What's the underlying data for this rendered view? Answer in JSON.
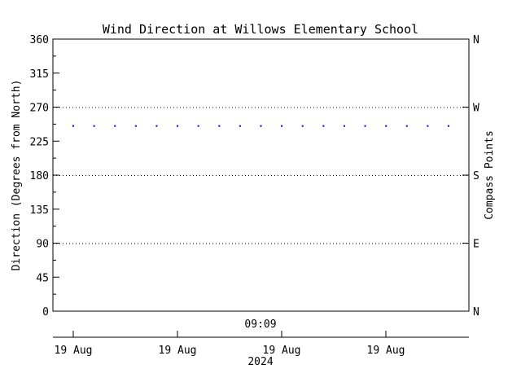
{
  "chart_data": {
    "type": "scatter",
    "title": "Wind Direction at Willows Elementary School",
    "ylabel": "Direction (Degrees from North)",
    "y2label": "Compass Points",
    "ylim": [
      0,
      360
    ],
    "y_ticks": [
      "0",
      "45",
      "90",
      "135",
      "180",
      "225",
      "270",
      "315",
      "360"
    ],
    "compass_ticks": [
      {
        "label": "N",
        "value": 0
      },
      {
        "label": "E",
        "value": 90
      },
      {
        "label": "S",
        "value": 180
      },
      {
        "label": "W",
        "value": 270
      },
      {
        "label": "N",
        "value": 360
      }
    ],
    "reference_lines": [
      90,
      180,
      270
    ],
    "time_label": "09:09",
    "x_ticks": [
      "19 Aug",
      "19 Aug",
      "19 Aug",
      "19 Aug"
    ],
    "x_year": "2024",
    "series": [
      {
        "color": "#0000ff",
        "values": [
          245,
          245,
          245,
          245,
          245,
          245,
          245,
          245,
          245,
          245,
          245,
          245,
          245,
          245,
          245,
          245,
          245,
          245,
          245
        ]
      }
    ],
    "grid": false,
    "legend": "none"
  }
}
